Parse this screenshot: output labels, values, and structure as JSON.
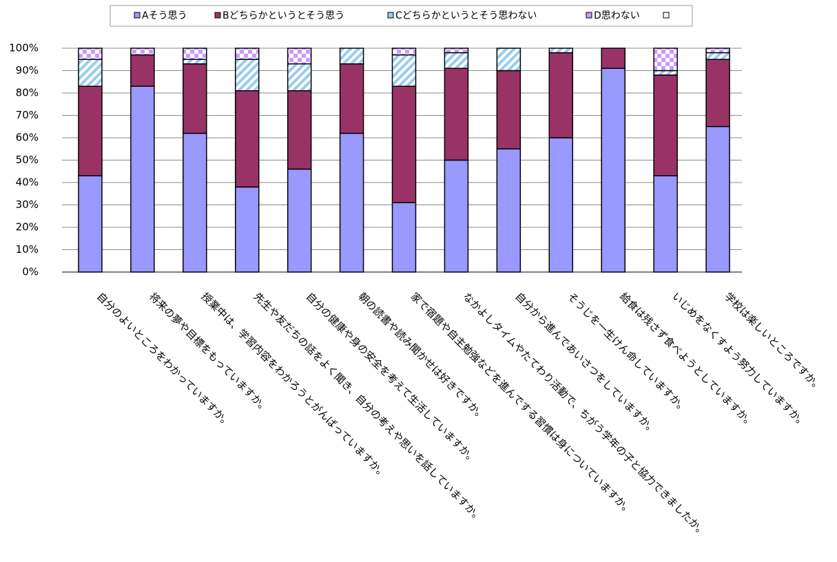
{
  "chart_data": {
    "type": "stacked_bar",
    "categories": [
      "自分のよいところをわかっていますか。",
      "将来の夢や目標をもっていますか。",
      "授業中は、学習内容をわかろうとがんばっていますか。",
      "先生や友だちの話をよく聞き、自分の考えや思いを話していますか。",
      "自分の健康や身の安全を考えて生活していますか。",
      "朝の読書や読み聞かせは好きですか。",
      "家で宿題や自主勉強などを進んでする習慣は身についていますか。",
      "なかよしタイムやたてわり活動で、ちがう学年の子と協力できましたか。",
      "自分から進んであいさつをしていますか。",
      "そうじを一生けん命していますか。",
      "給食は残さず食べようとしていますか。",
      "いじめをなくすよう努力していますか。",
      "学校は楽しいところですか。"
    ],
    "series": [
      {
        "name": "Aそう思う",
        "color": "#9999ff",
        "values": [
          43,
          83,
          62,
          38,
          46,
          62,
          31,
          50,
          55,
          60,
          91,
          43,
          65
        ]
      },
      {
        "name": "Bどちらかというとそう思う",
        "color": "#993366",
        "values": [
          40,
          14,
          31,
          43,
          35,
          31,
          52,
          41,
          35,
          38,
          9,
          45,
          30
        ]
      },
      {
        "name": "Cどちらかというとそう思わない",
        "color": "#99ccee",
        "values": [
          12,
          0,
          2,
          14,
          12,
          7,
          14,
          7,
          10,
          2,
          0,
          2,
          3
        ]
      },
      {
        "name": "D思わない",
        "color": "#cc99ff",
        "values": [
          5,
          3,
          5,
          5,
          7,
          0,
          3,
          2,
          0,
          0,
          0,
          10,
          2
        ]
      }
    ],
    "ylim": [
      0,
      100
    ],
    "yticks": [
      {
        "value": 0,
        "label": "0%"
      },
      {
        "value": 10,
        "label": "10%"
      },
      {
        "value": 20,
        "label": "20%"
      },
      {
        "value": 30,
        "label": "30%"
      },
      {
        "value": 40,
        "label": "40%"
      },
      {
        "value": 50,
        "label": "50%"
      },
      {
        "value": 60,
        "label": "60%"
      },
      {
        "value": 70,
        "label": "70%"
      },
      {
        "value": 80,
        "label": "80%"
      },
      {
        "value": 90,
        "label": "90%"
      },
      {
        "value": 100,
        "label": "100%"
      }
    ],
    "grid": true
  }
}
